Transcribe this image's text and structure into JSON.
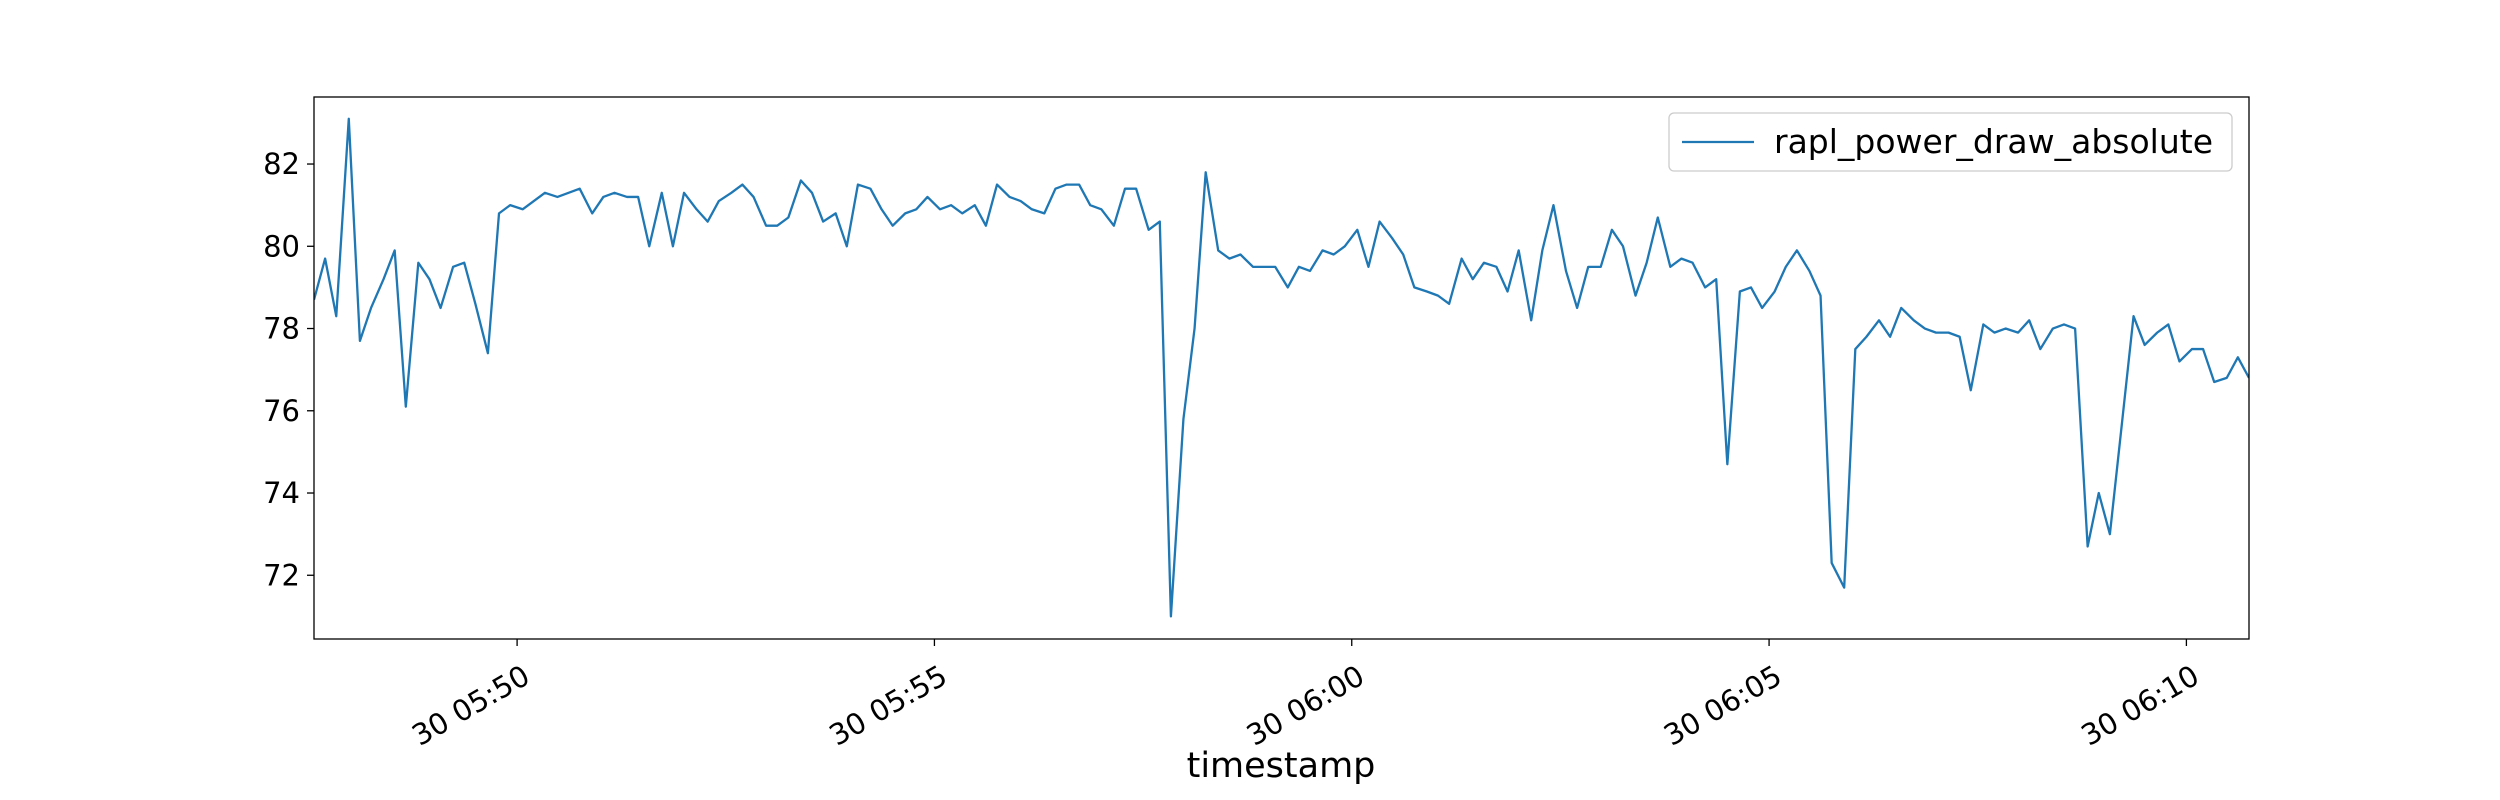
{
  "chart_data": {
    "type": "line",
    "xlabel": "timestamp",
    "legend": "upper right",
    "xlim": [
      "30 05:47:34",
      "30 06:10:45"
    ],
    "xticks": [
      {
        "value": "30 05:50:00",
        "label": "30 05:50"
      },
      {
        "value": "30 05:55:00",
        "label": "30 05:55"
      },
      {
        "value": "30 06:00:00",
        "label": "30 06:00"
      },
      {
        "value": "30 06:05:00",
        "label": "30 06:05"
      },
      {
        "value": "30 06:10:00",
        "label": "30 06:10"
      }
    ],
    "ylim": [
      70.45,
      83.63
    ],
    "yticks": [
      72,
      74,
      76,
      78,
      80,
      82
    ],
    "x": [
      "30 05:47:34",
      "30 05:47:42",
      "30 05:47:50",
      "30 05:47:59",
      "30 05:48:07",
      "30 05:48:15",
      "30 05:48:24",
      "30 05:48:32",
      "30 05:48:40",
      "30 05:48:49",
      "30 05:48:57",
      "30 05:49:05",
      "30 05:49:14",
      "30 05:49:22",
      "30 05:49:30",
      "30 05:49:39",
      "30 05:49:47",
      "30 05:49:55",
      "30 05:50:04",
      "30 05:50:12",
      "30 05:50:20",
      "30 05:50:29",
      "30 05:50:37",
      "30 05:50:45",
      "30 05:50:54",
      "30 05:51:02",
      "30 05:51:10",
      "30 05:51:19",
      "30 05:51:27",
      "30 05:51:35",
      "30 05:51:44",
      "30 05:51:52",
      "30 05:52:00",
      "30 05:52:09",
      "30 05:52:17",
      "30 05:52:25",
      "30 05:52:34",
      "30 05:52:42",
      "30 05:52:50",
      "30 05:52:59",
      "30 05:53:07",
      "30 05:53:15",
      "30 05:53:24",
      "30 05:53:32",
      "30 05:53:40",
      "30 05:53:49",
      "30 05:53:57",
      "30 05:54:05",
      "30 05:54:14",
      "30 05:54:22",
      "30 05:54:30",
      "30 05:54:39",
      "30 05:54:47",
      "30 05:54:55",
      "30 05:55:04",
      "30 05:55:12",
      "30 05:55:20",
      "30 05:55:29",
      "30 05:55:37",
      "30 05:55:45",
      "30 05:55:54",
      "30 05:56:02",
      "30 05:56:10",
      "30 05:56:19",
      "30 05:56:27",
      "30 05:56:35",
      "30 05:56:44",
      "30 05:56:52",
      "30 05:57:00",
      "30 05:57:09",
      "30 05:57:17",
      "30 05:57:25",
      "30 05:57:34",
      "30 05:57:42",
      "30 05:57:50",
      "30 05:57:59",
      "30 05:58:07",
      "30 05:58:15",
      "30 05:58:24",
      "30 05:58:32",
      "30 05:58:40",
      "30 05:58:49",
      "30 05:58:57",
      "30 05:59:05",
      "30 05:59:14",
      "30 05:59:22",
      "30 05:59:30",
      "30 05:59:39",
      "30 05:59:47",
      "30 05:59:55",
      "30 06:00:04",
      "30 06:00:12",
      "30 06:00:20",
      "30 06:00:29",
      "30 06:00:37",
      "30 06:00:45",
      "30 06:00:54",
      "30 06:01:02",
      "30 06:01:10",
      "30 06:01:19",
      "30 06:01:27",
      "30 06:01:35",
      "30 06:01:44",
      "30 06:01:52",
      "30 06:02:00",
      "30 06:02:09",
      "30 06:02:17",
      "30 06:02:25",
      "30 06:02:34",
      "30 06:02:42",
      "30 06:02:50",
      "30 06:02:59",
      "30 06:03:07",
      "30 06:03:15",
      "30 06:03:24",
      "30 06:03:32",
      "30 06:03:40",
      "30 06:03:49",
      "30 06:03:57",
      "30 06:04:05",
      "30 06:04:14",
      "30 06:04:22",
      "30 06:04:30",
      "30 06:04:39",
      "30 06:04:47",
      "30 06:04:55",
      "30 06:05:04",
      "30 06:05:12",
      "30 06:05:20",
      "30 06:05:29",
      "30 06:05:37",
      "30 06:05:45",
      "30 06:05:54",
      "30 06:06:02",
      "30 06:06:10",
      "30 06:06:19",
      "30 06:06:27",
      "30 06:06:35",
      "30 06:06:44",
      "30 06:06:52",
      "30 06:07:00",
      "30 06:07:09",
      "30 06:07:17",
      "30 06:07:25",
      "30 06:07:34",
      "30 06:07:42",
      "30 06:07:50",
      "30 06:07:59",
      "30 06:08:07",
      "30 06:08:15",
      "30 06:08:24",
      "30 06:08:32",
      "30 06:08:40",
      "30 06:08:49",
      "30 06:08:57",
      "30 06:09:05",
      "30 06:09:14",
      "30 06:09:22",
      "30 06:09:30",
      "30 06:09:39",
      "30 06:09:47",
      "30 06:09:55",
      "30 06:10:04",
      "30 06:10:12",
      "30 06:10:20",
      "30 06:10:29",
      "30 06:10:37",
      "30 06:10:45"
    ],
    "series": [
      {
        "name": "rapl_power_draw_absolute",
        "color": "#1f77b4",
        "values": [
          78.7,
          79.7,
          78.3,
          83.1,
          77.7,
          78.5,
          79.2,
          79.9,
          76.1,
          79.6,
          79.2,
          78.5,
          79.5,
          79.6,
          78.6,
          77.4,
          80.8,
          81.0,
          80.9,
          81.1,
          81.3,
          81.2,
          81.3,
          81.4,
          80.8,
          81.2,
          81.3,
          81.2,
          81.2,
          80.0,
          81.3,
          80.0,
          81.3,
          80.9,
          80.6,
          81.1,
          81.3,
          81.5,
          81.2,
          80.5,
          80.5,
          80.7,
          81.6,
          81.3,
          80.6,
          80.8,
          80.0,
          81.5,
          81.4,
          80.9,
          80.5,
          80.8,
          80.9,
          81.2,
          80.9,
          81.0,
          80.8,
          81.0,
          80.5,
          81.5,
          81.2,
          81.1,
          80.9,
          80.8,
          81.4,
          81.5,
          81.5,
          81.0,
          80.9,
          80.5,
          81.4,
          81.4,
          80.4,
          80.6,
          71.0,
          75.8,
          78.0,
          81.8,
          79.9,
          79.7,
          79.8,
          79.5,
          79.5,
          79.5,
          79.0,
          79.5,
          79.4,
          79.9,
          79.8,
          80.0,
          80.4,
          79.5,
          80.6,
          80.2,
          79.8,
          79.0,
          78.9,
          78.8,
          78.6,
          79.7,
          79.2,
          79.6,
          79.5,
          78.9,
          79.9,
          78.2,
          79.9,
          81.0,
          79.4,
          78.5,
          79.5,
          79.5,
          80.4,
          80.0,
          78.8,
          79.6,
          80.7,
          79.5,
          79.7,
          79.6,
          79.0,
          79.2,
          74.7,
          78.9,
          79.0,
          78.5,
          78.9,
          79.5,
          79.9,
          79.4,
          78.8,
          72.3,
          71.7,
          77.5,
          77.8,
          78.2,
          77.8,
          78.5,
          78.2,
          78.0,
          77.9,
          77.9,
          77.8,
          76.5,
          78.1,
          77.9,
          78.0,
          77.9,
          78.2,
          77.5,
          78.0,
          78.1,
          78.0,
          72.7,
          74.0,
          73.0,
          75.8,
          78.3,
          77.6,
          77.9,
          78.1,
          77.2,
          77.5,
          77.5,
          76.7,
          76.8,
          77.3,
          76.8
        ]
      }
    ]
  }
}
